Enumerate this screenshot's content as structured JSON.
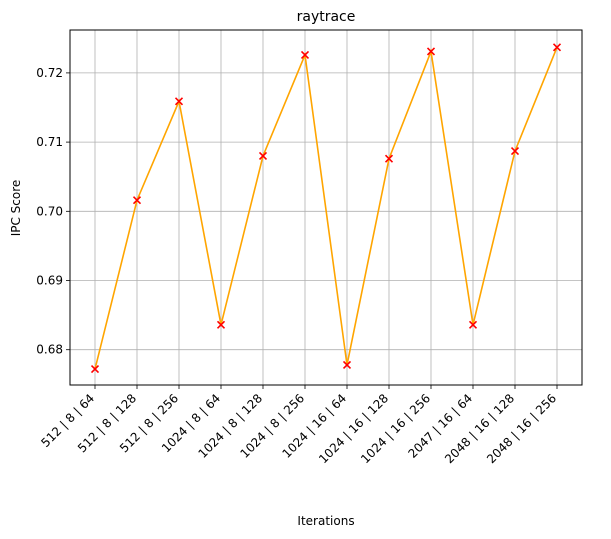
{
  "chart_data": {
    "type": "line",
    "title": "raytrace",
    "xlabel": "Iterations",
    "ylabel": "IPC Score",
    "categories": [
      "512 | 8 | 64",
      "512 | 8 | 128",
      "512 | 8 | 256",
      "1024 | 8 | 64",
      "1024 | 8 | 128",
      "1024 | 8 | 256",
      "1024 | 16 | 64",
      "1024 | 16 | 128",
      "1024 | 16 | 256",
      "2047 | 16 | 64",
      "2048 | 16 | 128",
      "2048 | 16 | 256"
    ],
    "values": [
      0.6772,
      0.7016,
      0.7159,
      0.6836,
      0.708,
      0.7226,
      0.6778,
      0.7076,
      0.7231,
      0.6836,
      0.7087,
      0.7237
    ],
    "ylim": [
      0.6749,
      0.7262
    ],
    "yticks": [
      "0.68",
      "0.69",
      "0.70",
      "0.71",
      "0.72"
    ],
    "grid": true,
    "line_color": "#ffa500",
    "marker_color": "#ff0000",
    "marker": "x"
  }
}
